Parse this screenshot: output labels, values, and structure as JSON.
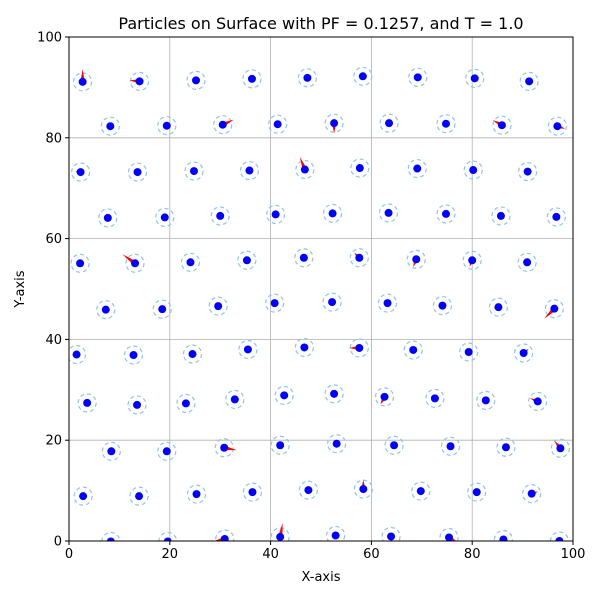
{
  "chart_data": {
    "type": "scatter",
    "title": "Particles on Surface with PF = 0.1257, and T = 1.0",
    "xlabel": "X-axis",
    "ylabel": "Y-axis",
    "xlim": [
      0,
      100
    ],
    "ylim": [
      0,
      100
    ],
    "xticks": [
      0,
      20,
      40,
      60,
      80,
      100
    ],
    "yticks": [
      0,
      20,
      40,
      60,
      80,
      100
    ],
    "grid": true,
    "colors": {
      "particle": "#0000ff",
      "halo": "#8ec5e6",
      "arrow": "#ff0000",
      "grid": "#b0b0b0"
    },
    "particles": [
      {
        "x": 2.7,
        "y": 91.1,
        "dx": 0,
        "dy": 2.5
      },
      {
        "x": 14.0,
        "y": 91.2,
        "dx": -2.0,
        "dy": 0.2
      },
      {
        "x": 25.2,
        "y": 91.4,
        "dx": 0,
        "dy": 0
      },
      {
        "x": 36.3,
        "y": 91.7,
        "dx": 0,
        "dy": 0
      },
      {
        "x": 47.3,
        "y": 91.9,
        "dx": 0,
        "dy": 0
      },
      {
        "x": 58.3,
        "y": 92.2,
        "dx": 0,
        "dy": 0
      },
      {
        "x": 69.2,
        "y": 92.0,
        "dx": -0.8,
        "dy": 0.4
      },
      {
        "x": 80.5,
        "y": 91.8,
        "dx": 0,
        "dy": 0
      },
      {
        "x": 91.3,
        "y": 91.2,
        "dx": 0,
        "dy": 0
      },
      {
        "x": 8.2,
        "y": 82.3,
        "dx": 0,
        "dy": 0
      },
      {
        "x": 19.4,
        "y": 82.4,
        "dx": 0,
        "dy": 0
      },
      {
        "x": 30.5,
        "y": 82.6,
        "dx": 2.2,
        "dy": 1.0
      },
      {
        "x": 41.4,
        "y": 82.7,
        "dx": 0,
        "dy": 0
      },
      {
        "x": 52.6,
        "y": 82.9,
        "dx": 0,
        "dy": -2.0
      },
      {
        "x": 63.5,
        "y": 82.9,
        "dx": 0,
        "dy": 0
      },
      {
        "x": 74.8,
        "y": 82.8,
        "dx": 0,
        "dy": 0
      },
      {
        "x": 85.9,
        "y": 82.5,
        "dx": -1.8,
        "dy": 1.0
      },
      {
        "x": 96.9,
        "y": 82.3,
        "dx": 1.5,
        "dy": -0.5
      },
      {
        "x": 2.3,
        "y": 73.2,
        "dx": -1.0,
        "dy": 0.2
      },
      {
        "x": 13.6,
        "y": 73.2,
        "dx": 0,
        "dy": 0
      },
      {
        "x": 24.8,
        "y": 73.4,
        "dx": 0,
        "dy": 0
      },
      {
        "x": 35.8,
        "y": 73.5,
        "dx": 0,
        "dy": 0
      },
      {
        "x": 46.8,
        "y": 73.7,
        "dx": -1.0,
        "dy": 2.5
      },
      {
        "x": 57.7,
        "y": 74.0,
        "dx": 0,
        "dy": 0
      },
      {
        "x": 69.1,
        "y": 73.9,
        "dx": 0,
        "dy": 0
      },
      {
        "x": 80.2,
        "y": 73.6,
        "dx": 0,
        "dy": 0
      },
      {
        "x": 91.0,
        "y": 73.3,
        "dx": 0,
        "dy": 0
      },
      {
        "x": 7.7,
        "y": 64.1,
        "dx": 0,
        "dy": 0
      },
      {
        "x": 19.0,
        "y": 64.2,
        "dx": 0,
        "dy": 0.8
      },
      {
        "x": 30.0,
        "y": 64.5,
        "dx": 0,
        "dy": 0
      },
      {
        "x": 41.0,
        "y": 64.8,
        "dx": 0,
        "dy": 0
      },
      {
        "x": 52.3,
        "y": 65.0,
        "dx": 0,
        "dy": 0
      },
      {
        "x": 63.4,
        "y": 65.1,
        "dx": 0,
        "dy": 0
      },
      {
        "x": 74.8,
        "y": 64.9,
        "dx": 0,
        "dy": 0
      },
      {
        "x": 85.7,
        "y": 64.5,
        "dx": 0,
        "dy": 0
      },
      {
        "x": 96.7,
        "y": 64.3,
        "dx": 0,
        "dy": 0
      },
      {
        "x": 2.2,
        "y": 55.1,
        "dx": 0,
        "dy": 0
      },
      {
        "x": 13.1,
        "y": 55.1,
        "dx": -2.5,
        "dy": 1.8
      },
      {
        "x": 24.1,
        "y": 55.3,
        "dx": 0,
        "dy": 0
      },
      {
        "x": 35.3,
        "y": 55.7,
        "dx": 0,
        "dy": 0
      },
      {
        "x": 46.6,
        "y": 56.2,
        "dx": 0,
        "dy": 0
      },
      {
        "x": 57.6,
        "y": 56.2,
        "dx": -1.0,
        "dy": 1.0
      },
      {
        "x": 68.9,
        "y": 55.9,
        "dx": -0.6,
        "dy": -1.5
      },
      {
        "x": 80.0,
        "y": 55.7,
        "dx": -0.5,
        "dy": -1.2
      },
      {
        "x": 90.9,
        "y": 55.3,
        "dx": 0,
        "dy": 0
      },
      {
        "x": 7.3,
        "y": 45.9,
        "dx": 0,
        "dy": 0
      },
      {
        "x": 18.5,
        "y": 46.0,
        "dx": 0,
        "dy": 0
      },
      {
        "x": 29.6,
        "y": 46.6,
        "dx": 0,
        "dy": 0
      },
      {
        "x": 40.8,
        "y": 47.2,
        "dx": 0,
        "dy": 0
      },
      {
        "x": 52.2,
        "y": 47.4,
        "dx": 0,
        "dy": 0
      },
      {
        "x": 63.2,
        "y": 47.2,
        "dx": 0,
        "dy": 0
      },
      {
        "x": 74.1,
        "y": 46.7,
        "dx": 0,
        "dy": 0
      },
      {
        "x": 85.2,
        "y": 46.4,
        "dx": 0,
        "dy": 0
      },
      {
        "x": 96.3,
        "y": 46.1,
        "dx": -2.0,
        "dy": -2.0
      },
      {
        "x": 1.5,
        "y": 37.0,
        "dx": 0,
        "dy": 0
      },
      {
        "x": 12.8,
        "y": 36.9,
        "dx": 0,
        "dy": 0
      },
      {
        "x": 24.5,
        "y": 37.1,
        "dx": 0,
        "dy": 0
      },
      {
        "x": 35.5,
        "y": 38.0,
        "dx": 0,
        "dy": 0
      },
      {
        "x": 46.7,
        "y": 38.4,
        "dx": 0,
        "dy": 0
      },
      {
        "x": 57.6,
        "y": 38.3,
        "dx": -2.0,
        "dy": 0
      },
      {
        "x": 68.3,
        "y": 37.9,
        "dx": 0,
        "dy": 0
      },
      {
        "x": 79.3,
        "y": 37.5,
        "dx": 0,
        "dy": 0
      },
      {
        "x": 90.2,
        "y": 37.3,
        "dx": 1.0,
        "dy": 0.8
      },
      {
        "x": 3.6,
        "y": 27.4,
        "dx": 0,
        "dy": 0
      },
      {
        "x": 13.5,
        "y": 27.0,
        "dx": 0,
        "dy": 0
      },
      {
        "x": 23.2,
        "y": 27.3,
        "dx": 0,
        "dy": 0
      },
      {
        "x": 32.9,
        "y": 28.1,
        "dx": 0,
        "dy": 0
      },
      {
        "x": 42.7,
        "y": 28.9,
        "dx": 0,
        "dy": 0
      },
      {
        "x": 52.6,
        "y": 29.2,
        "dx": 0,
        "dy": 0
      },
      {
        "x": 62.6,
        "y": 28.6,
        "dx": -0.8,
        "dy": -1.5
      },
      {
        "x": 72.6,
        "y": 28.3,
        "dx": 0,
        "dy": 0
      },
      {
        "x": 82.7,
        "y": 27.9,
        "dx": 0,
        "dy": 0
      },
      {
        "x": 93.0,
        "y": 27.7,
        "dx": -1.5,
        "dy": 0.6
      },
      {
        "x": 8.4,
        "y": 17.8,
        "dx": 0,
        "dy": 0
      },
      {
        "x": 19.4,
        "y": 17.8,
        "dx": 0,
        "dy": 0
      },
      {
        "x": 30.8,
        "y": 18.5,
        "dx": 2.5,
        "dy": -0.5
      },
      {
        "x": 41.9,
        "y": 19.0,
        "dx": 0,
        "dy": 0
      },
      {
        "x": 53.1,
        "y": 19.3,
        "dx": 0,
        "dy": 0
      },
      {
        "x": 64.5,
        "y": 19.0,
        "dx": 0,
        "dy": 0
      },
      {
        "x": 75.7,
        "y": 18.8,
        "dx": 0,
        "dy": 0
      },
      {
        "x": 86.7,
        "y": 18.6,
        "dx": 0,
        "dy": 0
      },
      {
        "x": 97.5,
        "y": 18.4,
        "dx": -1.2,
        "dy": 1.5
      },
      {
        "x": 2.8,
        "y": 8.9,
        "dx": 0,
        "dy": 0
      },
      {
        "x": 13.9,
        "y": 8.9,
        "dx": 0,
        "dy": 0
      },
      {
        "x": 25.3,
        "y": 9.3,
        "dx": 0,
        "dy": 0
      },
      {
        "x": 36.4,
        "y": 9.7,
        "dx": 0,
        "dy": 0
      },
      {
        "x": 47.5,
        "y": 10.1,
        "dx": 0,
        "dy": 0
      },
      {
        "x": 58.4,
        "y": 10.3,
        "dx": 0,
        "dy": 1.8
      },
      {
        "x": 69.8,
        "y": 9.9,
        "dx": 0,
        "dy": 0
      },
      {
        "x": 80.9,
        "y": 9.7,
        "dx": 0,
        "dy": 0
      },
      {
        "x": 91.8,
        "y": 9.4,
        "dx": 1.2,
        "dy": 0.4
      },
      {
        "x": 8.3,
        "y": -0.1,
        "dx": 0,
        "dy": 0
      },
      {
        "x": 19.6,
        "y": -0.1,
        "dx": 0,
        "dy": 0
      },
      {
        "x": 30.9,
        "y": 0.4,
        "dx": -1.8,
        "dy": -0.3
      },
      {
        "x": 41.9,
        "y": 0.8,
        "dx": 0.5,
        "dy": 2.8
      },
      {
        "x": 52.9,
        "y": 1.1,
        "dx": 0,
        "dy": 0
      },
      {
        "x": 63.9,
        "y": 0.9,
        "dx": 0,
        "dy": 0
      },
      {
        "x": 75.4,
        "y": 0.7,
        "dx": 1.5,
        "dy": -0.8
      },
      {
        "x": 86.2,
        "y": 0.3,
        "dx": 0,
        "dy": 0
      },
      {
        "x": 97.3,
        "y": 0.0,
        "dx": 0,
        "dy": 0
      }
    ]
  }
}
